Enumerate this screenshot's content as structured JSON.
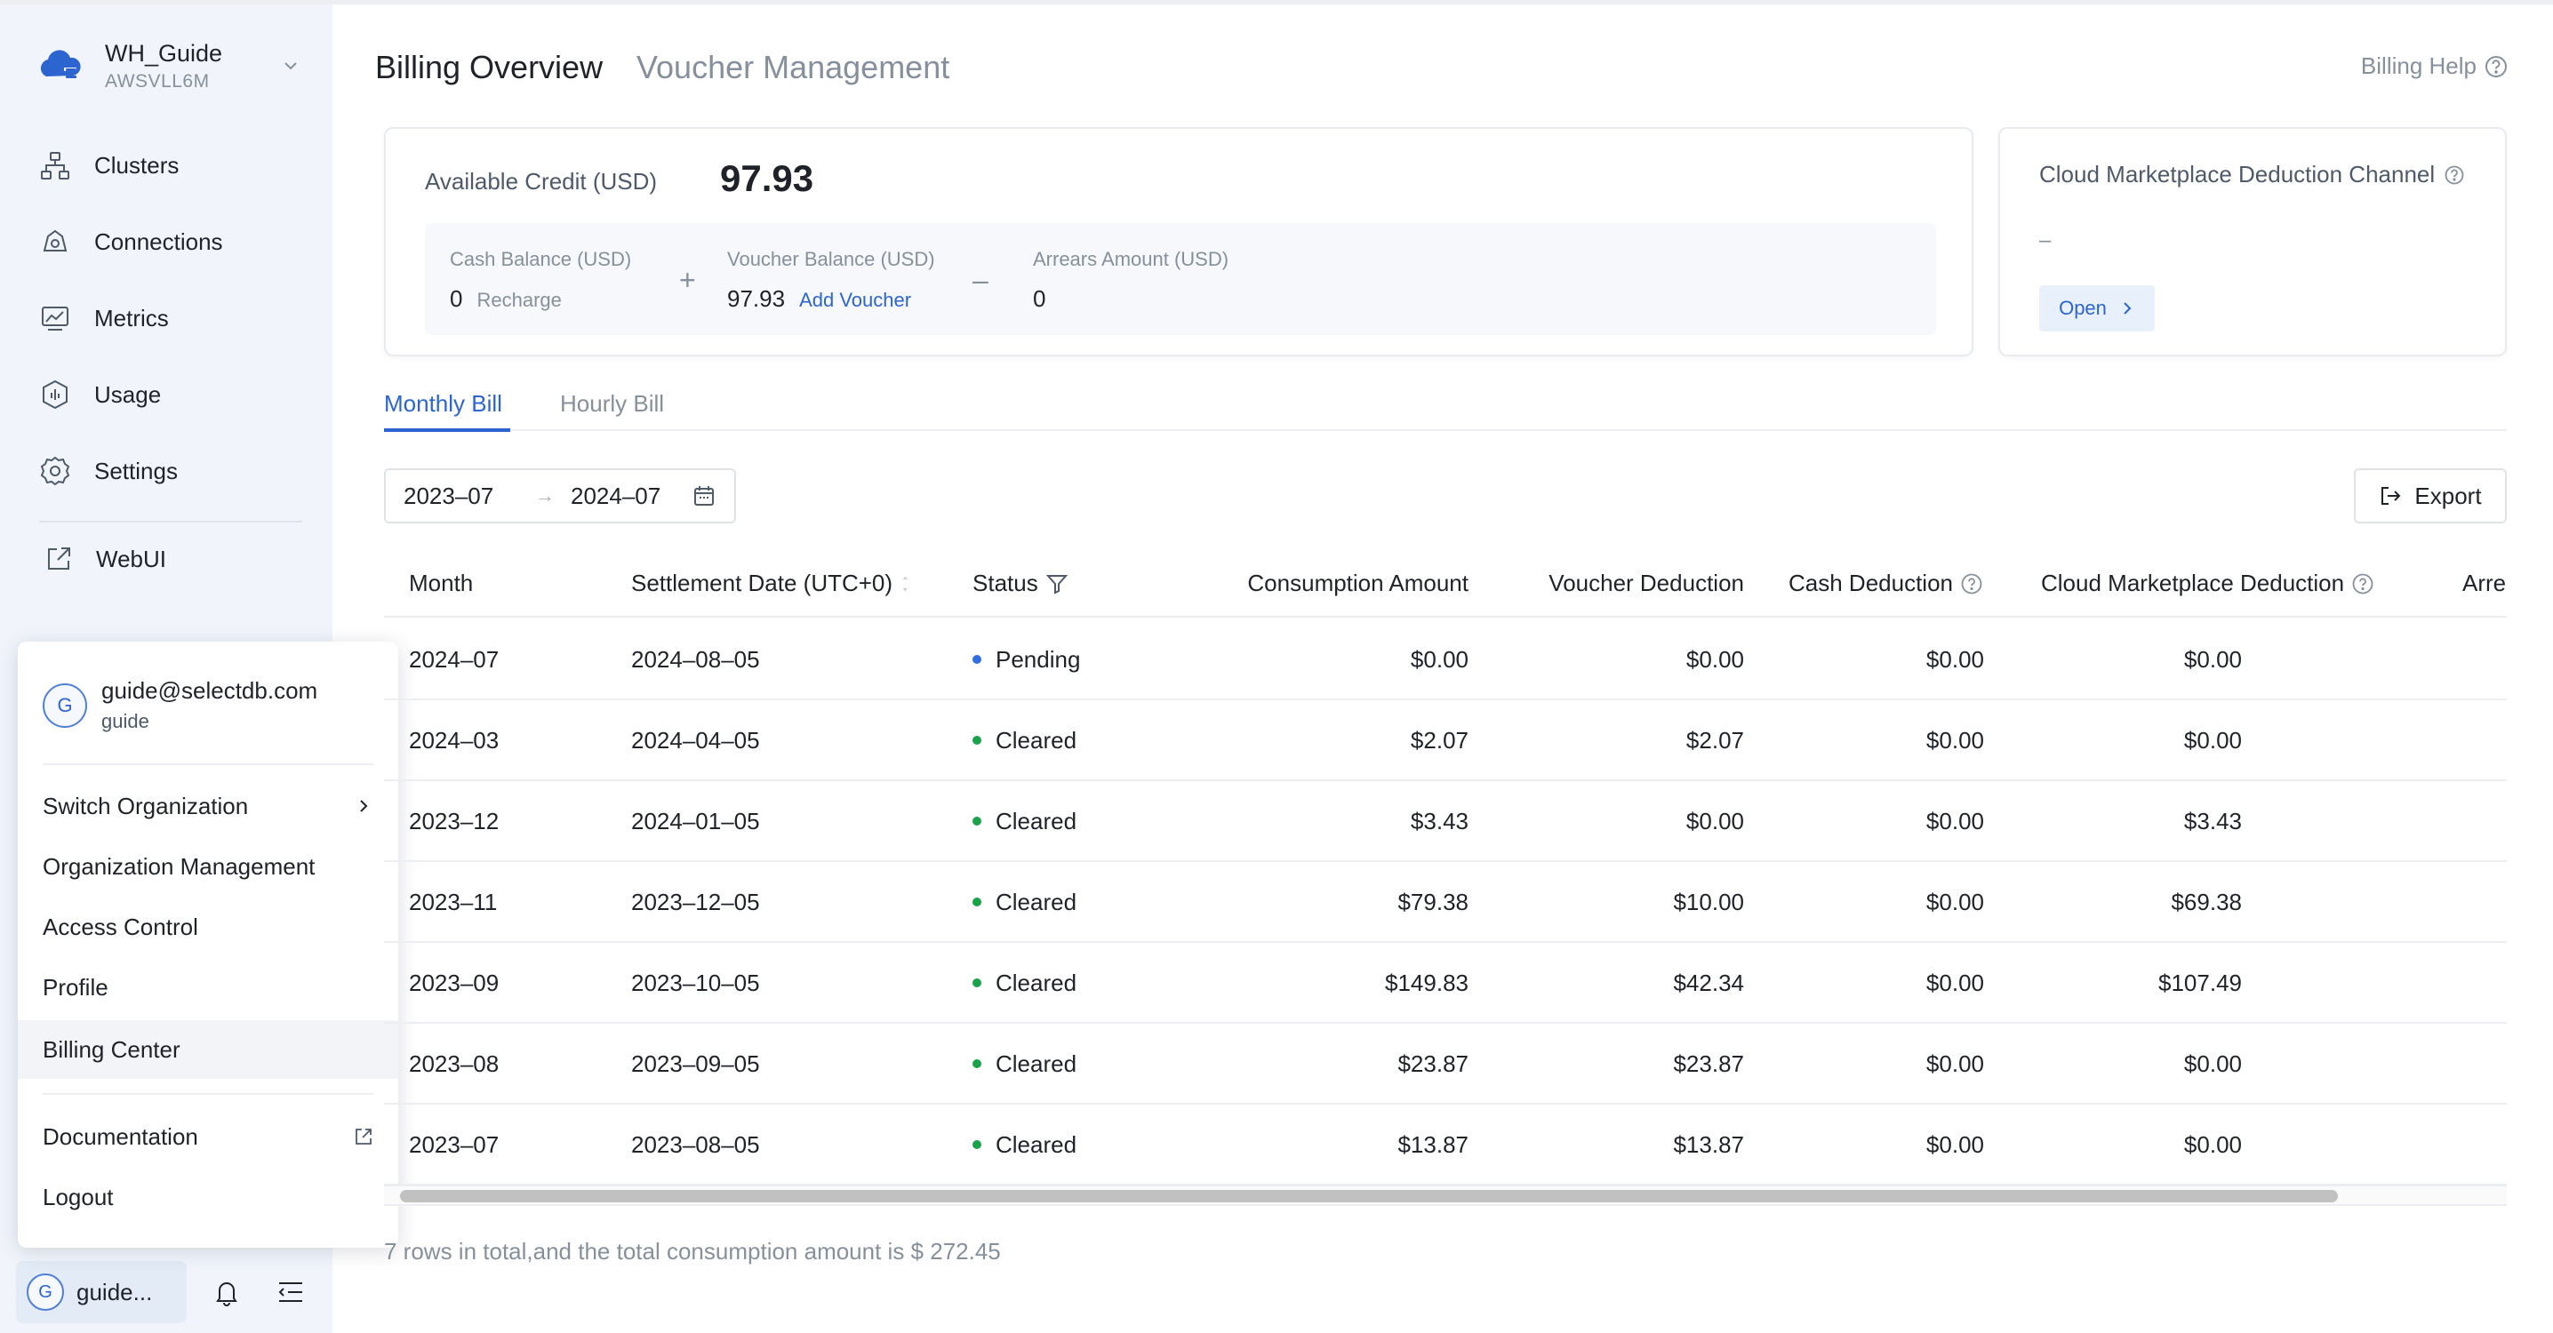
{
  "colors": {
    "accent": "#2c65d0",
    "pending": "#2f6fe0",
    "cleared": "#1aa34a",
    "sidebar_bg": "#f1f5fb"
  },
  "sidebar": {
    "org_name": "WH_Guide",
    "org_id": "AWSVLL6M",
    "items": [
      {
        "label": "Clusters",
        "icon": "clusters-icon"
      },
      {
        "label": "Connections",
        "icon": "connections-icon"
      },
      {
        "label": "Metrics",
        "icon": "metrics-icon"
      },
      {
        "label": "Usage",
        "icon": "usage-icon"
      },
      {
        "label": "Settings",
        "icon": "gear-icon"
      }
    ],
    "webui_label": "WebUI",
    "user_short": "guide...",
    "avatar_letter": "G"
  },
  "user_menu": {
    "email": "guide@selectdb.com",
    "username": "guide",
    "items": [
      {
        "label": "Switch Organization"
      },
      {
        "label": "Organization Management"
      },
      {
        "label": "Access Control"
      },
      {
        "label": "Profile"
      },
      {
        "label": "Billing Center"
      },
      {
        "label": "Documentation"
      },
      {
        "label": "Logout"
      }
    ]
  },
  "header": {
    "title": "Billing Overview",
    "subtitle": "Voucher Management",
    "help": "Billing Help"
  },
  "credit": {
    "label": "Available Credit (USD)",
    "value": "97.93",
    "cash_label": "Cash Balance (USD)",
    "cash_value": "0",
    "recharge": "Recharge",
    "plus": "+",
    "voucher_label": "Voucher Balance (USD)",
    "voucher_value": "97.93",
    "add_voucher": "Add Voucher",
    "minus": "–",
    "arrears_label": "Arrears Amount (USD)",
    "arrears_value": "0"
  },
  "marketplace": {
    "title": "Cloud Marketplace Deduction Channel",
    "value": "–",
    "open": "Open"
  },
  "tabs": {
    "monthly": "Monthly Bill",
    "hourly": "Hourly Bill"
  },
  "filters": {
    "start": "2023–07",
    "arrow": "→",
    "end": "2024–07",
    "export": "Export"
  },
  "table": {
    "headers": {
      "month": "Month",
      "settlement": "Settlement Date (UTC+0)",
      "status": "Status",
      "consumption": "Consumption Amount",
      "voucher": "Voucher Deduction",
      "cash": "Cash Deduction",
      "cloud": "Cloud Marketplace Deduction",
      "arrears": "Arre"
    },
    "rows": [
      {
        "month": "2024–07",
        "settlement": "2024–08–05",
        "status": "Pending",
        "consumption": "$0.00",
        "voucher": "$0.00",
        "cash": "$0.00",
        "cloud": "$0.00"
      },
      {
        "month": "2024–03",
        "settlement": "2024–04–05",
        "status": "Cleared",
        "consumption": "$2.07",
        "voucher": "$2.07",
        "cash": "$0.00",
        "cloud": "$0.00"
      },
      {
        "month": "2023–12",
        "settlement": "2024–01–05",
        "status": "Cleared",
        "consumption": "$3.43",
        "voucher": "$0.00",
        "cash": "$0.00",
        "cloud": "$3.43"
      },
      {
        "month": "2023–11",
        "settlement": "2023–12–05",
        "status": "Cleared",
        "consumption": "$79.38",
        "voucher": "$10.00",
        "cash": "$0.00",
        "cloud": "$69.38"
      },
      {
        "month": "2023–09",
        "settlement": "2023–10–05",
        "status": "Cleared",
        "consumption": "$149.83",
        "voucher": "$42.34",
        "cash": "$0.00",
        "cloud": "$107.49"
      },
      {
        "month": "2023–08",
        "settlement": "2023–09–05",
        "status": "Cleared",
        "consumption": "$23.87",
        "voucher": "$23.87",
        "cash": "$0.00",
        "cloud": "$0.00"
      },
      {
        "month": "2023–07",
        "settlement": "2023–08–05",
        "status": "Cleared",
        "consumption": "$13.87",
        "voucher": "$13.87",
        "cash": "$0.00",
        "cloud": "$0.00"
      }
    ]
  },
  "summary": "7 rows in total,and the total consumption amount is $ 272.45"
}
